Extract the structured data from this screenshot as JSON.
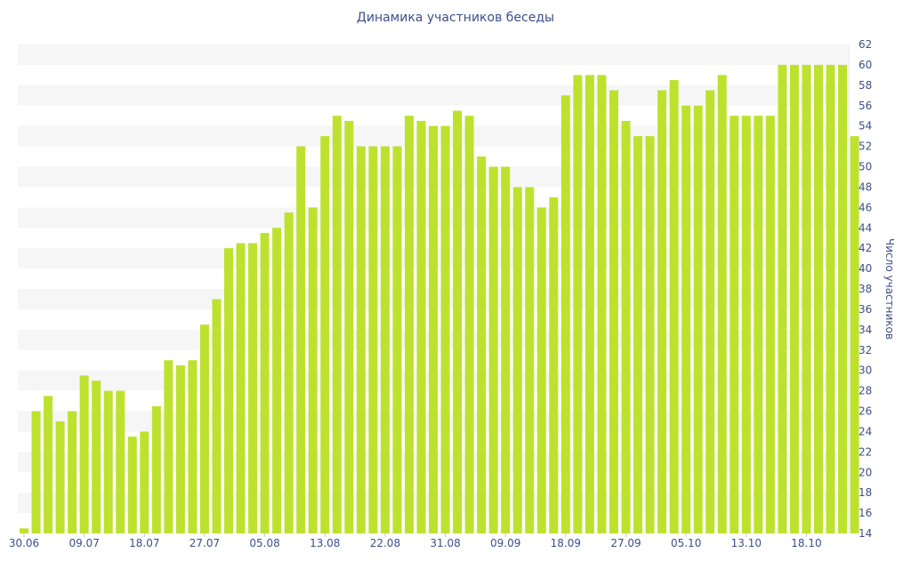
{
  "chart_data": {
    "type": "bar",
    "title": "Динамика участников беседы",
    "xlabel": "",
    "ylabel": "Число участников",
    "ylim": [
      14,
      62
    ],
    "ytick_step": 2,
    "y_axis_position": "right",
    "grid": "horizontal-bands",
    "bar_color": "#bde22e",
    "band_color": "#f6f6f6",
    "text_color": "#3e4f8a",
    "x_tick_labels": [
      {
        "index": 0,
        "label": "30.06"
      },
      {
        "index": 5,
        "label": "09.07"
      },
      {
        "index": 10,
        "label": "18.07"
      },
      {
        "index": 15,
        "label": "27.07"
      },
      {
        "index": 20,
        "label": "05.08"
      },
      {
        "index": 25,
        "label": "13.08"
      },
      {
        "index": 30,
        "label": "22.08"
      },
      {
        "index": 35,
        "label": "31.08"
      },
      {
        "index": 40,
        "label": "09.09"
      },
      {
        "index": 45,
        "label": "18.09"
      },
      {
        "index": 50,
        "label": "27.09"
      },
      {
        "index": 55,
        "label": "05.10"
      },
      {
        "index": 60,
        "label": "13.10"
      },
      {
        "index": 65,
        "label": "18.10"
      }
    ],
    "values": [
      14.5,
      26,
      27.5,
      25,
      26,
      29.5,
      29,
      28,
      28,
      23.5,
      24,
      26.5,
      31,
      30.5,
      31,
      34.5,
      37,
      42,
      42.5,
      42.5,
      43.5,
      44,
      45.5,
      52,
      46,
      53,
      55,
      54.5,
      52,
      52,
      52,
      52,
      55,
      54.5,
      54,
      54,
      55.5,
      55,
      51,
      50,
      50,
      48,
      48,
      46,
      47,
      57,
      59,
      59,
      59,
      57.5,
      54.5,
      53,
      53,
      57.5,
      58.5,
      56,
      56,
      57.5,
      59,
      55,
      55,
      55,
      55,
      60,
      60,
      60,
      60,
      60,
      60,
      53
    ]
  }
}
